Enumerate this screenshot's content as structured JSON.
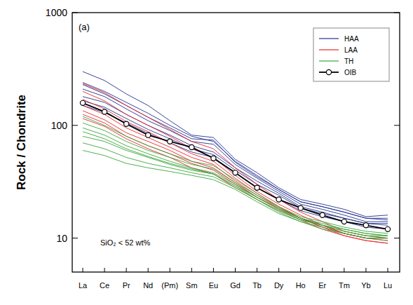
{
  "chart_data": {
    "type": "line",
    "log": "y",
    "annotations": [
      "(a)",
      "SiO₂ < 52 wt%"
    ],
    "y_label": "Rock / Chondrite",
    "categories": [
      "La",
      "Ce",
      "Pr",
      "Nd",
      "(Pm)",
      "Sm",
      "Eu",
      "Gd",
      "Tb",
      "Dy",
      "Ho",
      "Er",
      "Tm",
      "Yb",
      "Lu"
    ],
    "ylim": [
      5,
      1000
    ],
    "yticks": [
      10,
      100,
      1000
    ],
    "legend": "upper right",
    "series": [
      {
        "name": "HAA",
        "color": "#22308f",
        "values": [
          [
            300,
            250,
            190,
            150,
            110,
            82,
            78,
            50,
            38,
            28,
            22,
            20,
            18,
            15.5,
            16
          ],
          [
            240,
            200,
            160,
            128,
            100,
            80,
            72,
            48,
            36,
            27,
            21,
            19,
            17,
            15,
            15
          ],
          [
            210,
            180,
            140,
            110,
            90,
            72,
            68,
            45,
            34,
            26,
            20,
            18,
            16,
            14,
            14
          ],
          [
            180,
            160,
            125,
            100,
            82,
            66,
            58,
            42,
            32,
            25,
            19,
            17,
            15,
            13.5,
            13.5
          ],
          [
            165,
            145,
            115,
            92,
            76,
            62,
            55,
            40,
            30,
            24,
            18.5,
            16.5,
            15,
            13.5,
            13
          ],
          [
            150,
            130,
            105,
            85,
            70,
            58,
            52,
            38,
            28,
            22,
            17.5,
            15.5,
            14,
            12.5,
            12
          ],
          [
            230,
            190,
            150,
            118,
            95,
            76,
            74,
            47,
            35,
            27,
            21,
            19,
            17,
            15,
            14.5
          ]
        ]
      },
      {
        "name": "LAA",
        "color": "#e8262b",
        "values": [
          [
            235,
            195,
            150,
            118,
            92,
            72,
            62,
            42,
            30,
            22,
            17,
            14,
            11.5,
            10.5,
            10
          ],
          [
            200,
            165,
            125,
            100,
            80,
            62,
            52,
            36,
            26,
            20,
            16,
            13,
            11,
            10,
            9.5
          ],
          [
            170,
            140,
            108,
            88,
            70,
            56,
            48,
            34,
            25,
            19,
            15,
            12.5,
            10.5,
            9.5,
            9
          ],
          [
            150,
            125,
            95,
            78,
            64,
            52,
            45,
            32,
            24,
            19,
            15,
            13,
            11,
            10,
            10
          ],
          [
            135,
            112,
            86,
            72,
            60,
            48,
            42,
            31,
            23,
            18.5,
            15,
            13,
            11,
            10,
            10
          ],
          [
            125,
            105,
            80,
            66,
            56,
            46,
            40,
            30,
            23,
            18,
            15,
            12.5,
            11,
            10,
            10
          ],
          [
            115,
            98,
            76,
            62,
            52,
            42,
            37,
            28,
            22,
            17.5,
            14.5,
            12,
            10.5,
            9.5,
            9
          ]
        ]
      },
      {
        "name": "TH",
        "color": "#3aa63a",
        "values": [
          [
            120,
            100,
            80,
            66,
            56,
            48,
            44,
            33,
            25,
            19,
            15.5,
            14,
            12.5,
            11.5,
            11
          ],
          [
            105,
            90,
            72,
            60,
            52,
            45,
            41,
            31,
            24,
            18.5,
            15,
            13.5,
            12,
            11,
            10.5
          ],
          [
            95,
            82,
            66,
            56,
            48,
            42,
            38,
            30,
            23,
            18,
            14.5,
            13,
            11.5,
            10.5,
            10.5
          ],
          [
            80,
            72,
            60,
            52,
            45,
            40,
            37,
            29,
            22,
            17.5,
            14.5,
            13,
            11.5,
            10.5,
            10
          ],
          [
            70,
            62,
            52,
            46,
            42,
            38,
            35,
            28,
            22,
            17,
            14,
            12.5,
            11,
            10,
            10
          ],
          [
            60,
            54,
            46,
            42,
            39,
            36,
            33,
            27,
            21,
            16.5,
            14,
            12,
            11,
            10,
            9.5
          ],
          [
            88,
            76,
            62,
            53,
            46,
            41,
            37,
            29,
            23,
            18,
            15,
            13,
            12,
            11,
            10.5
          ]
        ]
      },
      {
        "name": "OIB",
        "color": "#000000",
        "marker": "circle",
        "values": [
          158,
          132,
          103,
          82,
          72,
          64,
          51,
          38,
          28,
          22,
          18.5,
          16,
          14,
          13,
          12
        ]
      }
    ]
  }
}
